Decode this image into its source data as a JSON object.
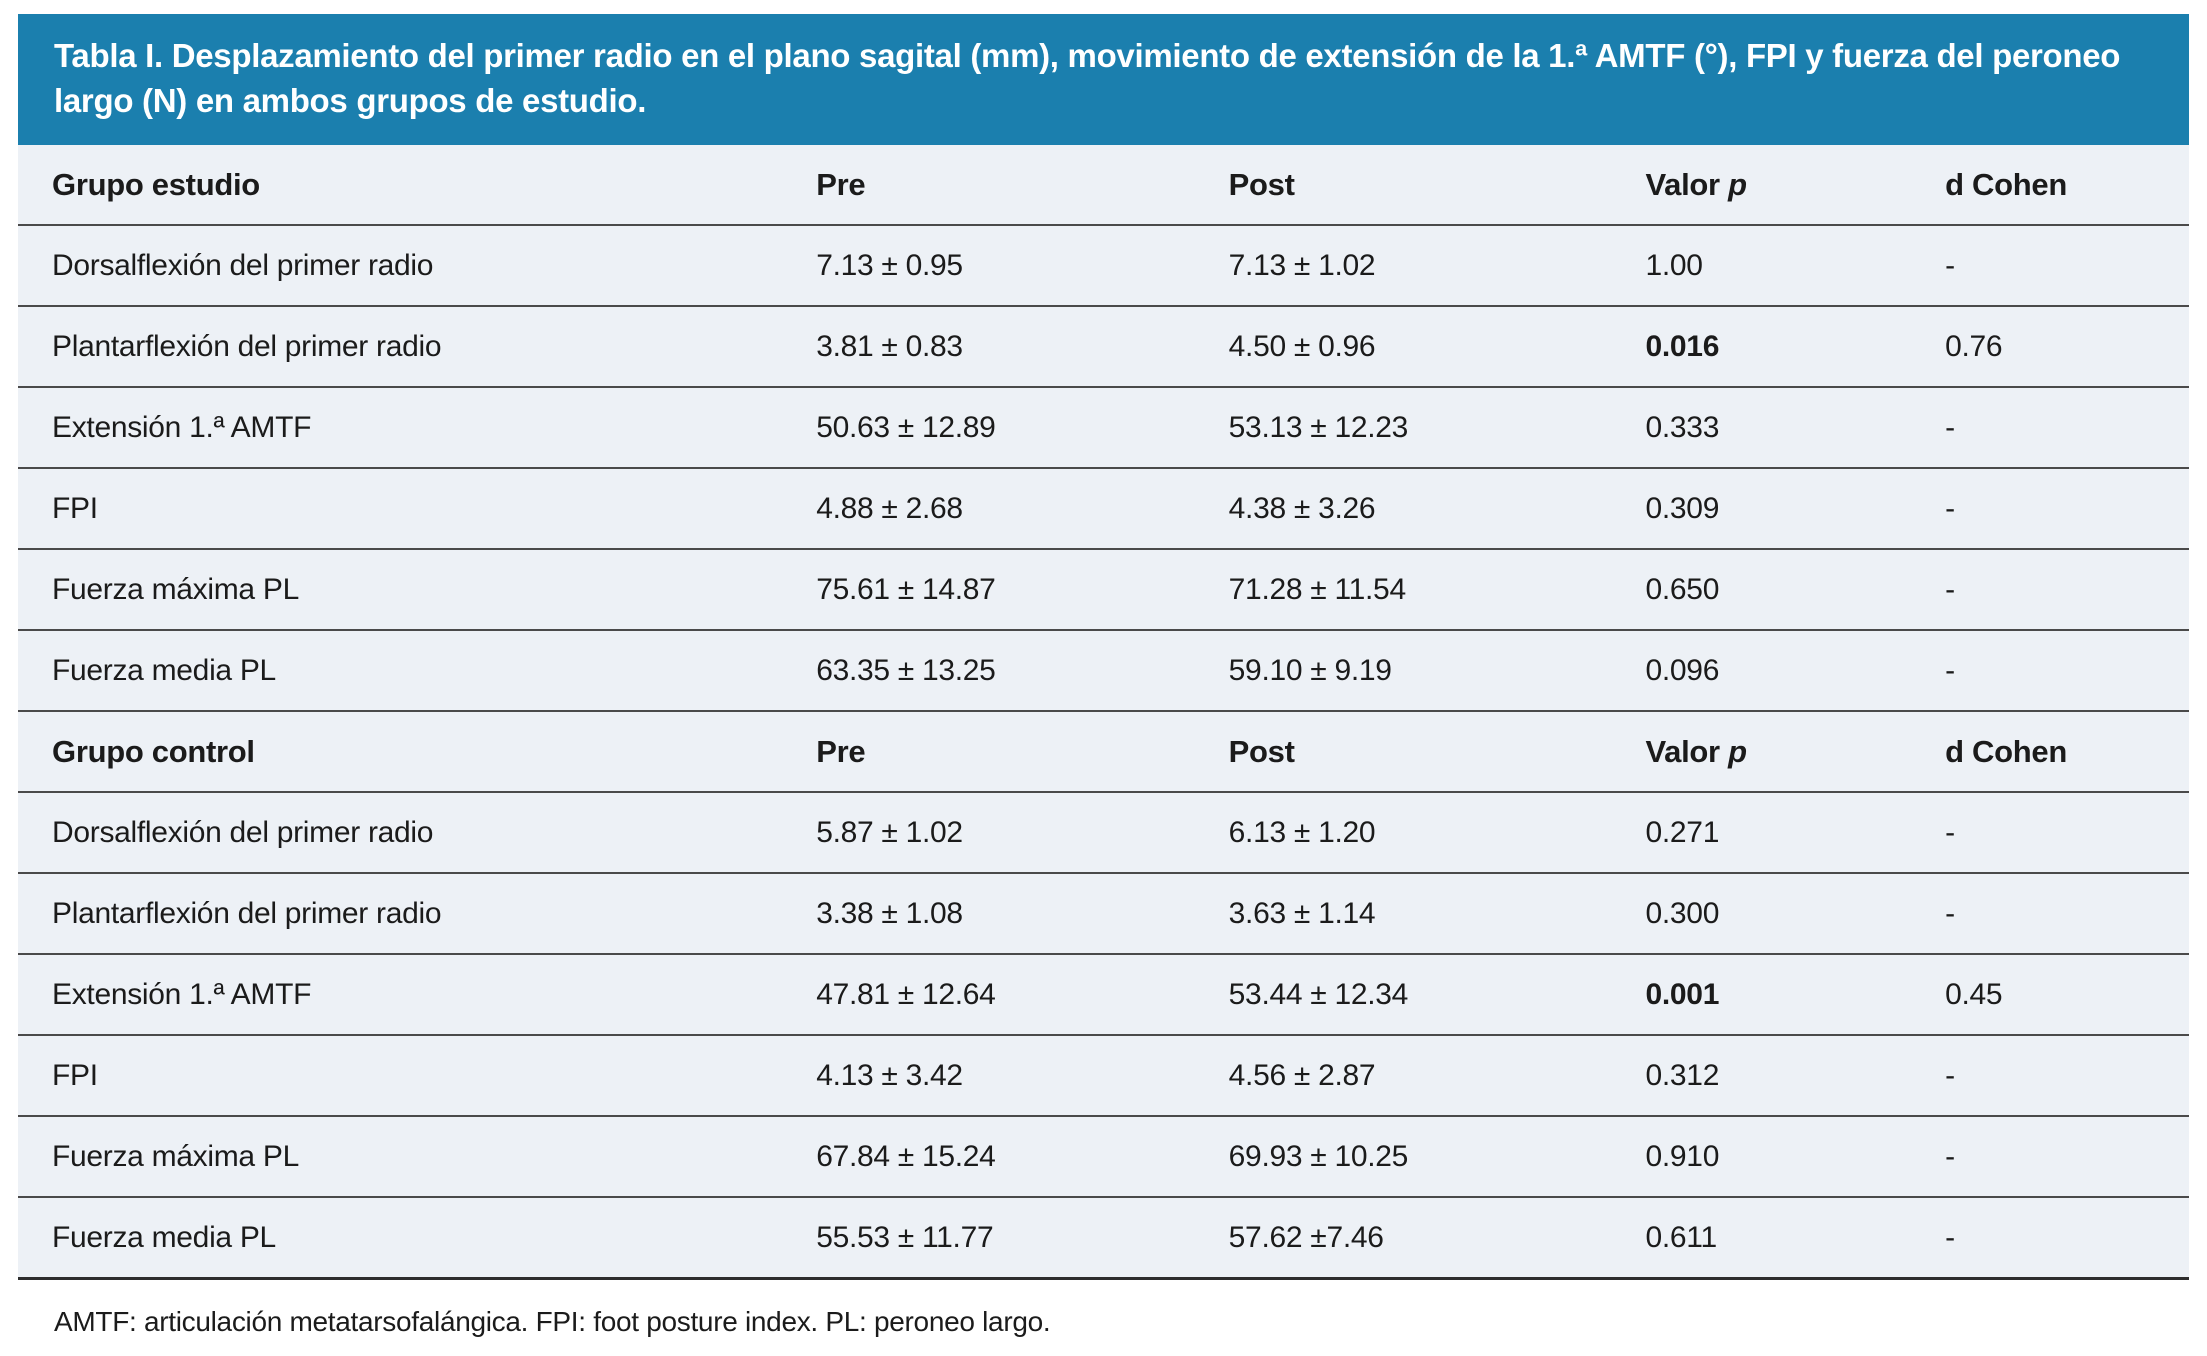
{
  "title": "Tabla I. Desplazamiento del primer radio en el plano sagital (mm), movimiento de extensión de la 1.ª AMTF (°), FPI y fuerza del peroneo largo (N) en ambos grupos de estudio.",
  "table": {
    "columns": {
      "pre": "Pre",
      "post": "Post",
      "valor": "Valor",
      "p_italic": "p",
      "d_cohen": "d Cohen"
    },
    "groups": [
      {
        "name": "Grupo estudio",
        "rows": [
          {
            "label": "Dorsalflexión del primer radio",
            "pre": "7.13 ± 0.95",
            "post": "7.13 ± 1.02",
            "p": "1.00",
            "p_bold": false,
            "d_cohen": "-"
          },
          {
            "label": "Plantarflexión del primer radio",
            "pre": "3.81 ± 0.83",
            "post": "4.50 ± 0.96",
            "p": "0.016",
            "p_bold": true,
            "d_cohen": "0.76"
          },
          {
            "label": "Extensión 1.ª AMTF",
            "pre": "50.63 ± 12.89",
            "post": "53.13 ± 12.23",
            "p": "0.333",
            "p_bold": false,
            "d_cohen": "-"
          },
          {
            "label": "FPI",
            "pre": "4.88 ± 2.68",
            "post": "4.38 ± 3.26",
            "p": "0.309",
            "p_bold": false,
            "d_cohen": "-"
          },
          {
            "label": "Fuerza máxima PL",
            "pre": "75.61 ± 14.87",
            "post": "71.28 ± 11.54",
            "p": "0.650",
            "p_bold": false,
            "d_cohen": "-"
          },
          {
            "label": "Fuerza media PL",
            "pre": "63.35 ± 13.25",
            "post": "59.10 ± 9.19",
            "p": "0.096",
            "p_bold": false,
            "d_cohen": "-"
          }
        ]
      },
      {
        "name": "Grupo control",
        "rows": [
          {
            "label": "Dorsalflexión del primer radio",
            "pre": "5.87 ± 1.02",
            "post": "6.13 ± 1.20",
            "p": "0.271",
            "p_bold": false,
            "d_cohen": "-"
          },
          {
            "label": "Plantarflexión del primer radio",
            "pre": "3.38 ± 1.08",
            "post": "3.63 ± 1.14",
            "p": "0.300",
            "p_bold": false,
            "d_cohen": "-"
          },
          {
            "label": "Extensión 1.ª AMTF",
            "pre": "47.81 ± 12.64",
            "post": "53.44 ± 12.34",
            "p": "0.001",
            "p_bold": true,
            "d_cohen": "0.45"
          },
          {
            "label": "FPI",
            "pre": "4.13 ± 3.42",
            "post": "4.56 ± 2.87",
            "p": "0.312",
            "p_bold": false,
            "d_cohen": "-"
          },
          {
            "label": "Fuerza máxima PL",
            "pre": "67.84 ± 15.24",
            "post": "69.93 ± 10.25",
            "p": "0.910",
            "p_bold": false,
            "d_cohen": "-"
          },
          {
            "label": "Fuerza media PL",
            "pre": "55.53 ± 11.77",
            "post": "57.62 ±7.46",
            "p": "0.611",
            "p_bold": false,
            "d_cohen": "-"
          }
        ]
      }
    ]
  },
  "footnote": "AMTF: articulación metatarsofalángica. FPI: foot posture index. PL: peroneo largo.",
  "colors": {
    "page_bg": "#ffffff",
    "banner_bg": "#1b7fae",
    "banner_text": "#ffffff",
    "body_bg": "#edf1f6",
    "rule": "#4a4a4a",
    "bottom_rule": "#2d2d2d",
    "text": "#1b1b1b"
  }
}
